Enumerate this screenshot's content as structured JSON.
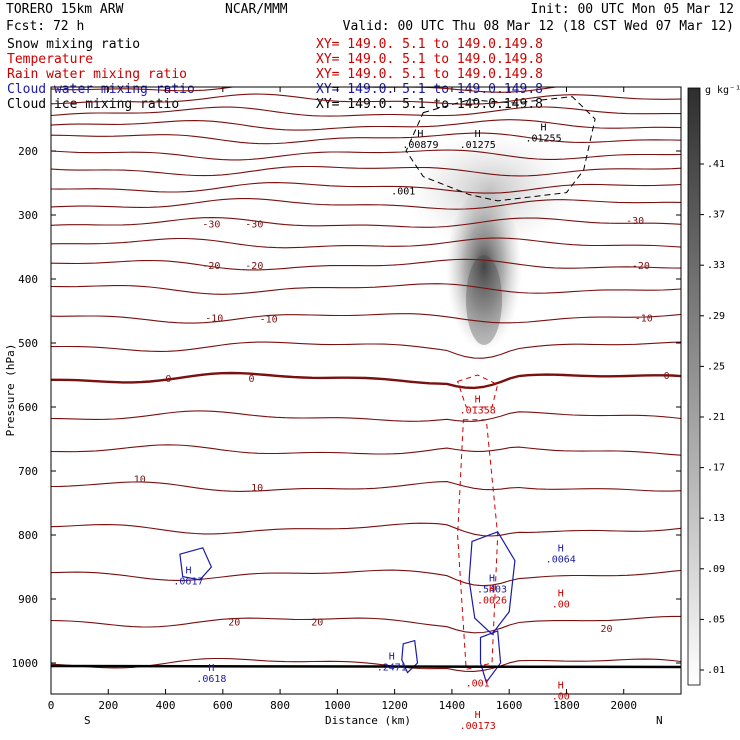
{
  "header": {
    "model": "TORERO  15km ARW",
    "org": "NCAR/MMM",
    "init": "Init: 00 UTC Mon 05 Mar 12",
    "fcst": "Fcst:   72 h",
    "valid": "Valid: 00 UTC Thu 08 Mar 12 (18 CST Wed 07 Mar 12)"
  },
  "fields": [
    {
      "name": "Snow mixing ratio",
      "xy": "XY= 149.0.  5.1 to 149.0.149.8",
      "color": "#000000",
      "xy_color": "#cc0000"
    },
    {
      "name": "Temperature",
      "xy": "XY= 149.0.  5.1 to 149.0.149.8",
      "color": "#cc0000",
      "xy_color": "#cc0000"
    },
    {
      "name": "Rain water mixing ratio",
      "xy": "XY= 149.0.  5.1 to 149.0.149.8",
      "color": "#cc0000",
      "xy_color": "#cc0000"
    },
    {
      "name": "Cloud water mixing ratio",
      "xy": "XY= 149.0.  5.1 to 149.0.149.8",
      "color": "#1a1aa8",
      "xy_color": "#1a1aa8"
    },
    {
      "name": "Cloud ice mixing ratio",
      "xy": "XY= 149.0.  5.1 to 149.0.149.8",
      "color": "#000000",
      "xy_color": "#000000"
    }
  ],
  "chart_data": {
    "type": "heatmap",
    "xlabel": "Distance (km)",
    "ylabel": "Pressure (hPa)",
    "xlim": [
      0,
      2200
    ],
    "ylim": [
      1050,
      100
    ],
    "x_ticks": [
      0,
      200,
      400,
      600,
      800,
      1000,
      1200,
      1400,
      1600,
      1800,
      2000
    ],
    "y_ticks": [
      200,
      300,
      400,
      500,
      600,
      700,
      800,
      900,
      1000
    ],
    "x_end_labels": {
      "left": "S",
      "right": "N"
    },
    "colorbar": {
      "unit": "g kg⁻¹",
      "ticks": [
        ".01",
        ".05",
        ".09",
        ".13",
        ".17",
        ".21",
        ".25",
        ".29",
        ".33",
        ".37",
        ".41"
      ]
    },
    "temperature_labels": [
      {
        "text": "-30",
        "x": 560,
        "p": 313
      },
      {
        "text": "-30",
        "x": 710,
        "p": 313
      },
      {
        "text": "-30",
        "x": 2040,
        "p": 308
      },
      {
        "text": "-20",
        "x": 560,
        "p": 378
      },
      {
        "text": "-20",
        "x": 710,
        "p": 378
      },
      {
        "text": "-20",
        "x": 2060,
        "p": 378
      },
      {
        "text": "-10",
        "x": 570,
        "p": 460
      },
      {
        "text": "-10",
        "x": 760,
        "p": 462
      },
      {
        "text": "-10",
        "x": 2070,
        "p": 460
      },
      {
        "text": "0",
        "x": 410,
        "p": 555
      },
      {
        "text": "0",
        "x": 700,
        "p": 555
      },
      {
        "text": "0",
        "x": 2150,
        "p": 550
      },
      {
        "text": "10",
        "x": 310,
        "p": 712
      },
      {
        "text": "10",
        "x": 720,
        "p": 725
      },
      {
        "text": "20",
        "x": 640,
        "p": 935
      },
      {
        "text": "20",
        "x": 930,
        "p": 935
      },
      {
        "text": "20",
        "x": 1940,
        "p": 945
      }
    ],
    "maxima": [
      {
        "label": "H",
        "value": ".00879",
        "x": 1290,
        "p": 195,
        "color": "#000000"
      },
      {
        "label": "H",
        "value": ".01275",
        "x": 1490,
        "p": 195,
        "color": "#000000"
      },
      {
        "label": "H",
        "value": ".01255",
        "x": 1720,
        "p": 185,
        "color": "#000000"
      },
      {
        "label": "",
        "value": ".001",
        "x": 1230,
        "p": 268,
        "color": "#000000"
      },
      {
        "label": "H",
        "value": ".01358",
        "x": 1490,
        "p": 610,
        "color": "#cc0000"
      },
      {
        "label": "H",
        "value": ".0064",
        "x": 1780,
        "p": 843,
        "color": "#1a1aa8"
      },
      {
        "label": "H",
        "value": ".5403",
        "x": 1540,
        "p": 890,
        "color": "#1a1aa8"
      },
      {
        "label": "H",
        "value": ".0026",
        "x": 1540,
        "p": 907,
        "color": "#cc0000"
      },
      {
        "label": "H",
        "value": ".00",
        "x": 1780,
        "p": 913,
        "color": "#cc0000"
      },
      {
        "label": "H",
        "value": ".0617",
        "x": 480,
        "p": 877,
        "color": "#1a1aa8"
      },
      {
        "label": "H",
        "value": ".0618",
        "x": 560,
        "p": 1030,
        "color": "#1a1aa8"
      },
      {
        "label": "H",
        "value": ".2471",
        "x": 1190,
        "p": 1012,
        "color": "#1a1aa8"
      },
      {
        "label": "",
        "value": ".001",
        "x": 1490,
        "p": 1037,
        "color": "#cc0000"
      },
      {
        "label": "H",
        "value": ".00",
        "x": 1780,
        "p": 1057,
        "color": "#cc0000"
      },
      {
        "label": "H",
        "value": ".00173",
        "x": 1490,
        "p": 1103,
        "color": "#cc0000"
      }
    ]
  }
}
